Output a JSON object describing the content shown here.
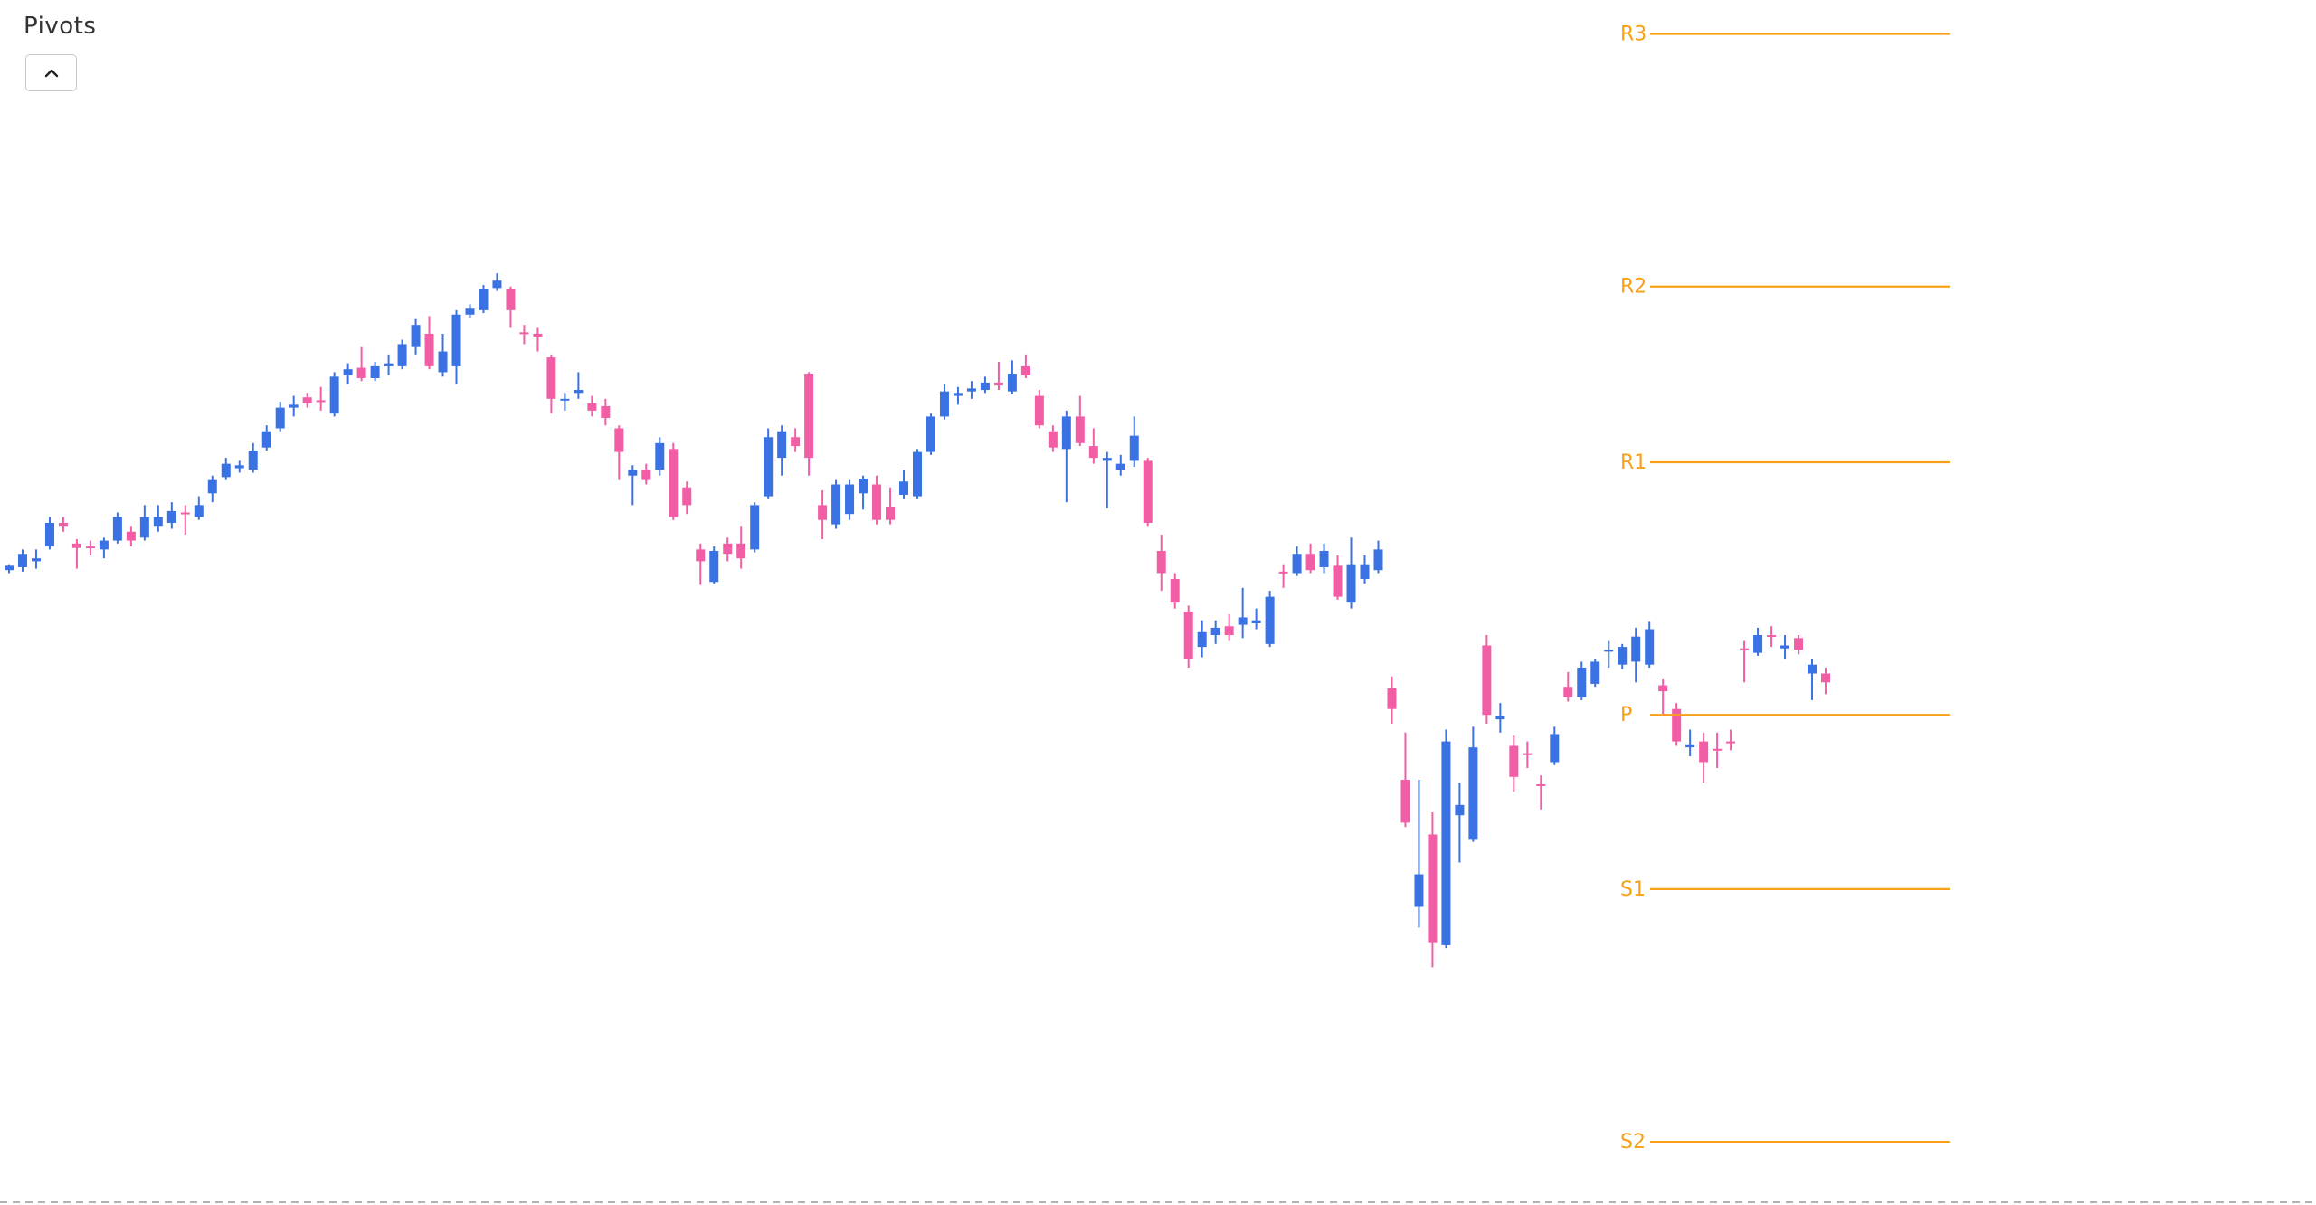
{
  "chart_data": {
    "type": "candlestick",
    "title": "Pivots",
    "up_color": "#3a72e3",
    "down_color": "#f15ea6",
    "pivot_color": "#f7a018",
    "ylim": [
      186,
      1000
    ],
    "open": [
      614,
      616,
      620,
      630,
      646,
      632,
      630,
      628,
      634,
      640,
      636,
      644,
      646,
      653,
      650,
      666,
      677,
      683,
      682,
      697,
      710,
      724,
      731,
      729,
      720,
      746,
      751,
      744,
      752,
      752,
      765,
      774,
      748,
      752,
      787,
      790,
      805,
      804,
      775,
      774,
      758,
      729,
      734,
      727,
      725,
      710,
      678,
      682,
      682,
      696,
      670,
      628,
      606,
      632,
      632,
      628,
      664,
      690,
      704,
      747,
      658,
      645,
      652,
      666,
      672,
      657,
      665,
      664,
      694,
      718,
      732,
      735,
      736,
      741,
      735,
      752,
      732,
      708,
      696,
      718,
      698,
      688,
      682,
      688,
      688,
      627,
      608,
      586,
      562,
      570,
      576,
      577,
      578,
      564,
      613,
      612,
      625,
      616,
      617,
      592,
      608,
      614,
      534,
      472,
      386,
      435,
      360,
      448,
      432,
      563,
      513,
      495,
      490,
      469,
      484,
      535,
      528,
      537,
      559,
      550,
      552,
      550,
      536,
      520,
      494,
      498,
      493,
      498,
      561,
      558,
      570,
      561,
      568,
      544,
      544
    ],
    "high": [
      618,
      628,
      628,
      650,
      650,
      635,
      634,
      636,
      653,
      644,
      658,
      658,
      660,
      658,
      664,
      678,
      690,
      688,
      700,
      712,
      728,
      732,
      734,
      738,
      748,
      754,
      765,
      755,
      760,
      770,
      784,
      786,
      774,
      790,
      794,
      807,
      815,
      806,
      780,
      778,
      760,
      734,
      748,
      732,
      730,
      712,
      685,
      686,
      704,
      700,
      674,
      632,
      630,
      636,
      644,
      660,
      710,
      712,
      710,
      748,
      668,
      675,
      675,
      678,
      678,
      670,
      682,
      696,
      720,
      740,
      738,
      742,
      745,
      755,
      756,
      760,
      736,
      712,
      722,
      732,
      710,
      694,
      692,
      718,
      690,
      638,
      612,
      590,
      580,
      580,
      584,
      602,
      588,
      600,
      618,
      630,
      632,
      632,
      624,
      636,
      624,
      634,
      542,
      504,
      472,
      450,
      506,
      470,
      508,
      570,
      524,
      502,
      498,
      475,
      508,
      545,
      552,
      554,
      566,
      564,
      575,
      579,
      540,
      524,
      506,
      504,
      504,
      506,
      566,
      575,
      576,
      570,
      570,
      554,
      548
    ],
    "low": [
      612,
      613,
      615,
      628,
      640,
      615,
      624,
      622,
      632,
      630,
      634,
      640,
      642,
      638,
      648,
      660,
      675,
      680,
      680,
      695,
      708,
      718,
      724,
      722,
      718,
      740,
      742,
      742,
      746,
      750,
      760,
      750,
      745,
      740,
      785,
      788,
      803,
      778,
      767,
      762,
      720,
      722,
      730,
      718,
      712,
      675,
      658,
      672,
      678,
      648,
      652,
      604,
      605,
      620,
      615,
      626,
      662,
      678,
      694,
      678,
      635,
      642,
      648,
      655,
      645,
      645,
      662,
      662,
      692,
      716,
      726,
      730,
      734,
      736,
      733,
      744,
      710,
      694,
      660,
      698,
      686,
      656,
      678,
      684,
      644,
      600,
      588,
      548,
      555,
      564,
      566,
      568,
      574,
      562,
      602,
      610,
      612,
      612,
      594,
      588,
      605,
      612,
      510,
      440,
      372,
      345,
      358,
      416,
      430,
      510,
      504,
      464,
      480,
      452,
      482,
      525,
      526,
      535,
      548,
      547,
      538,
      548,
      515,
      495,
      488,
      470,
      480,
      492,
      538,
      556,
      562,
      554,
      557,
      526,
      530
    ],
    "close": [
      617,
      625,
      622,
      646,
      644,
      629,
      629,
      634,
      650,
      634,
      650,
      650,
      654,
      652,
      658,
      675,
      686,
      685,
      695,
      708,
      724,
      726,
      727,
      728,
      745,
      750,
      744,
      752,
      754,
      767,
      780,
      752,
      762,
      787,
      791,
      804,
      810,
      790,
      774,
      772,
      730,
      730,
      736,
      722,
      717,
      694,
      682,
      675,
      700,
      650,
      658,
      620,
      627,
      625,
      622,
      658,
      704,
      708,
      698,
      690,
      648,
      672,
      672,
      676,
      648,
      648,
      674,
      694,
      718,
      735,
      734,
      737,
      741,
      739,
      747,
      746,
      712,
      697,
      718,
      700,
      690,
      690,
      686,
      705,
      646,
      612,
      592,
      554,
      572,
      575,
      570,
      582,
      580,
      596,
      612,
      625,
      614,
      627,
      596,
      618,
      618,
      628,
      520,
      443,
      408,
      362,
      498,
      455,
      494,
      516,
      515,
      474,
      489,
      468,
      503,
      528,
      548,
      552,
      560,
      562,
      569,
      574,
      532,
      498,
      496,
      484,
      492,
      497,
      560,
      570,
      569,
      563,
      560,
      550,
      538
    ],
    "pivots": [
      {
        "label": "R3",
        "value": 977
      },
      {
        "label": "R2",
        "value": 806
      },
      {
        "label": "R1",
        "value": 687
      },
      {
        "label": "P",
        "value": 516
      },
      {
        "label": "S1",
        "value": 398
      },
      {
        "label": "S2",
        "value": 227
      }
    ]
  }
}
